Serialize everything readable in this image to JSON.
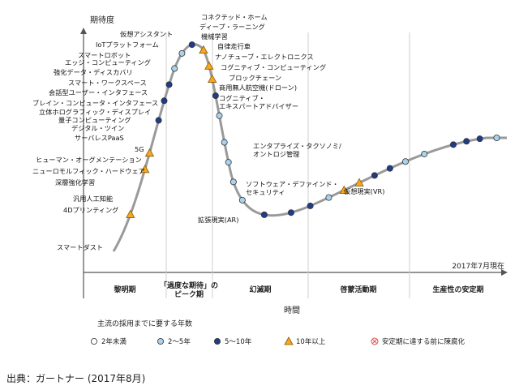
{
  "y_label": "期待度",
  "x_label": "時間",
  "as_of": "2017年7月現在",
  "source": "出典：ガートナー (2017年8月)",
  "phases": [
    "黎明期",
    "「過度な期待」の\nピーク期",
    "幻滅期",
    "啓蒙活動期",
    "生産性の安定期"
  ],
  "legend_title": "主流の採用までに要する年数",
  "legend": [
    {
      "label": "2年未満",
      "marker": "white"
    },
    {
      "label": "2～5年",
      "marker": "light"
    },
    {
      "label": "5～10年",
      "marker": "dark"
    },
    {
      "label": "10年以上",
      "marker": "triangle"
    },
    {
      "label": "安定期に達する前に陳腐化",
      "marker": "obsolete"
    }
  ],
  "colors": {
    "curve": "#9a9a9a",
    "dark": "#1f3c88",
    "light": "#a9d3ec",
    "triangle": "#f5a623",
    "obsolete": "#e05050"
  },
  "technologies": [
    {
      "label": "スマートダスト",
      "t": 0.06,
      "marker": "triangle"
    },
    {
      "label": "4Dプリンティング",
      "t": 0.13,
      "marker": "triangle"
    },
    {
      "label": "汎用人工知能",
      "t": 0.155,
      "marker": "triangle"
    },
    {
      "label": "深層強化学習",
      "t": 0.205,
      "marker": "dark"
    },
    {
      "label": "ニューロモルフィック・ハードウェア",
      "t": 0.235,
      "marker": "dark"
    },
    {
      "label": "ヒューマン・オーグメンテーション",
      "t": 0.26,
      "marker": "dark"
    },
    {
      "label": "5G",
      "t": 0.285,
      "marker": "light"
    },
    {
      "label": "サーバレスPaaS",
      "t": 0.31,
      "marker": "light"
    },
    {
      "label": "デジタル・ツイン",
      "t": 0.33,
      "marker": "dark"
    },
    {
      "label": "量子コンピューティング",
      "t": 0.35,
      "marker": "triangle"
    },
    {
      "label": "立体ホログラフィック・ディスプレイ",
      "t": 0.375,
      "marker": "triangle"
    },
    {
      "label": "ブレイン・コンピュータ・インタフェース",
      "t": 0.395,
      "marker": "triangle"
    },
    {
      "label": "会話型ユーザー・インタフェース",
      "t": 0.42,
      "marker": "dark"
    },
    {
      "label": "スマート・ワークスペース",
      "t": 0.45,
      "marker": "light"
    },
    {
      "label": "強化データ・ディスカバリ",
      "t": 0.49,
      "marker": "light"
    },
    {
      "label": "エッジ・コンピューティング",
      "t": 0.52,
      "marker": "light"
    },
    {
      "label": "スマートロボット",
      "t": 0.55,
      "marker": "light"
    },
    {
      "label": "IoTプラットフォーム",
      "t": 0.58,
      "marker": "light"
    },
    {
      "label": "仮想アシスタント",
      "t": 0.62,
      "marker": "dark"
    },
    {
      "label": "コネクテッド・ホーム",
      "t": 0.66,
      "marker": "dark"
    },
    {
      "label": "ディープ・ラーニング",
      "t": 0.69,
      "marker": "dark"
    },
    {
      "label": "機械学習",
      "t": 0.72,
      "marker": "light"
    },
    {
      "label": "自律走行車",
      "t": 0.745,
      "marker": "triangle"
    },
    {
      "label": "ナノチューブ・エレクトロニクス",
      "t": 0.77,
      "marker": "triangle"
    },
    {
      "label": "コグニティブ・コンピューティング",
      "t": 0.795,
      "marker": "dark"
    },
    {
      "label": "ブロックチェーン",
      "t": 0.82,
      "marker": "dark"
    },
    {
      "label": "商用無人航空機(ドローン)",
      "t": 0.845,
      "marker": "light"
    },
    {
      "label": "コグニティブ・\nエキスパートアドバイザー",
      "t": 0.875,
      "marker": "light"
    },
    {
      "label": "エンタプライズ・タクソノミ/\nオントロジ管理",
      "t": 0.92,
      "marker": "dark"
    },
    {
      "label": "ソフトウェア・デファインド・\nセキュリティ",
      "t": 0.94,
      "marker": "dark"
    },
    {
      "label": "拡張現実(AR)",
      "t": 0.96,
      "marker": "dark"
    },
    {
      "label": "仮想現実(VR)",
      "t": 0.985,
      "marker": "light"
    }
  ]
}
